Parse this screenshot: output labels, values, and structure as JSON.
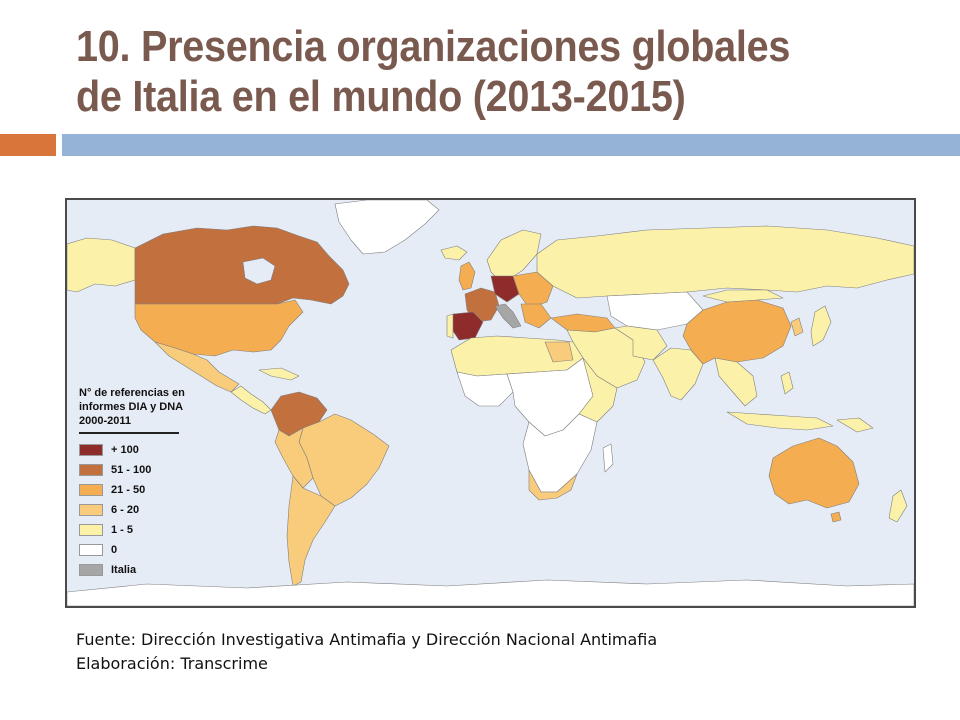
{
  "slide": {
    "title_line1": "10. Presencia organizaciones globales",
    "title_line2": "de Italia en el mundo (2013-2015)",
    "source_line1": "Fuente: Dirección Investigativa Antimafia y Dirección Nacional Antimafia",
    "source_line2": "Elaboración: Transcrime"
  },
  "legend": {
    "title_line1": "N° de referencias en",
    "title_line2": "informes DIA y DNA",
    "title_line3": "2000-2011",
    "items": [
      {
        "label": "+ 100",
        "color": "#8e2c2c"
      },
      {
        "label": "51 - 100",
        "color": "#c2703d"
      },
      {
        "label": "21 - 50",
        "color": "#f5ad52"
      },
      {
        "label": "6 - 20",
        "color": "#f9cc7c"
      },
      {
        "label": "1 - 5",
        "color": "#fcf1a8"
      },
      {
        "label": "0",
        "color": "#ffffff"
      },
      {
        "label": "Italia",
        "color": "#a6a6a6"
      }
    ]
  },
  "map": {
    "ocean_color": "#e6ecf5",
    "border_color": "#7f7f7f"
  }
}
